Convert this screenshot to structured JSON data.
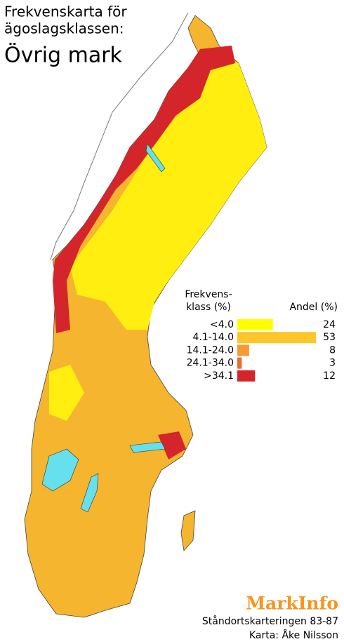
{
  "title": [
    "Frekvenskarta för",
    "ägoslagsklassen:"
  ],
  "subtitle": "Övrig mark",
  "legend": {
    "class_header": [
      "Frekvens-",
      "klass (%)"
    ],
    "share_header": "Andel (%)",
    "items": [
      {
        "label": "<4.0",
        "color": "#ffff00",
        "value": 24
      },
      {
        "label": "4.1-14.0",
        "color": "#fcc52a",
        "value": 53
      },
      {
        "label": "14.1-24.0",
        "color": "#f79a34",
        "value": 8
      },
      {
        "label": "24.1-34.0",
        "color": "#ee6a2c",
        "value": 3
      },
      {
        "label": ">34.1",
        "color": "#d4262a",
        "value": 12
      }
    ]
  },
  "brand": "MarkInfo",
  "credits": [
    "Ståndortskarteringen 83-87",
    "Karta: Åke Nilsson"
  ]
}
